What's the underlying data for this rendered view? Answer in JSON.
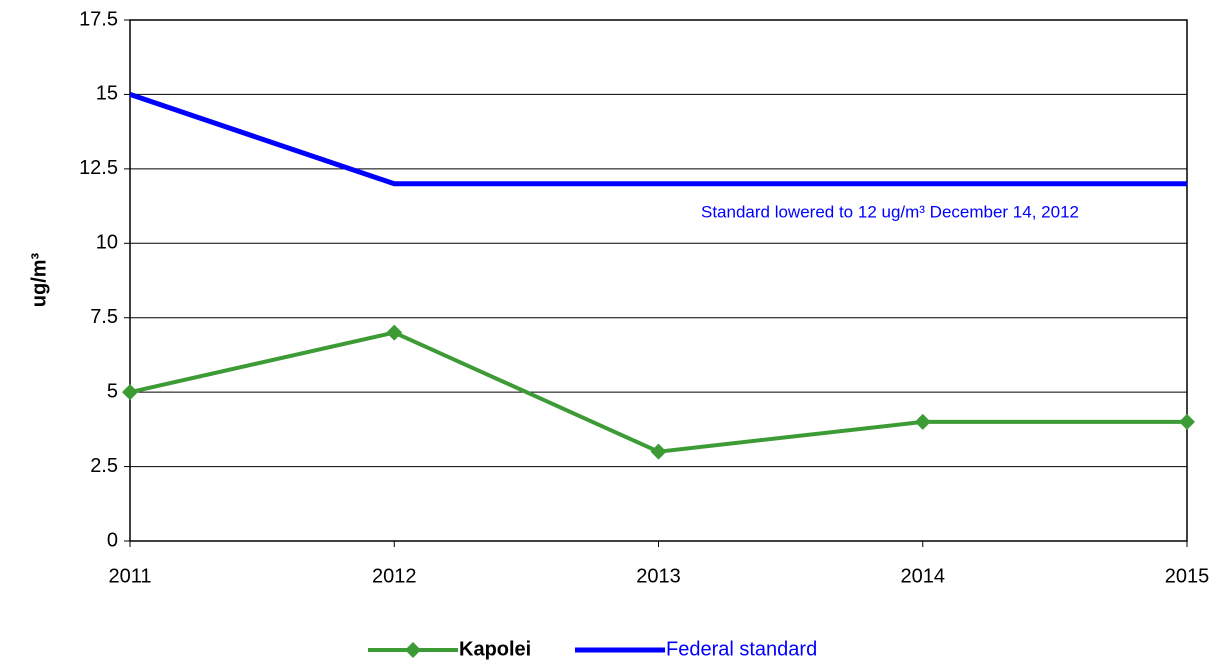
{
  "chart_data": {
    "type": "line",
    "x": [
      2011,
      2012,
      2013,
      2014,
      2015
    ],
    "xlim": [
      2011,
      2015
    ],
    "xticks": [
      2011,
      2012,
      2013,
      2014,
      2015
    ],
    "ylim": [
      0,
      17.5
    ],
    "yticks": [
      0,
      2.5,
      5,
      7.5,
      10,
      12.5,
      15,
      17.5
    ],
    "ylabel": "ug/m³",
    "annotation": "Standard lowered to 12 ug/m³ December 14, 2012",
    "grid": true,
    "series": [
      {
        "name": "Kapolei",
        "color": "#3d9b35",
        "marker": "diamond",
        "values": [
          5,
          7,
          3,
          4,
          4
        ]
      },
      {
        "name": "Federal standard",
        "color": "#0000ff",
        "values": [
          15,
          12,
          12,
          12,
          12
        ]
      }
    ]
  }
}
